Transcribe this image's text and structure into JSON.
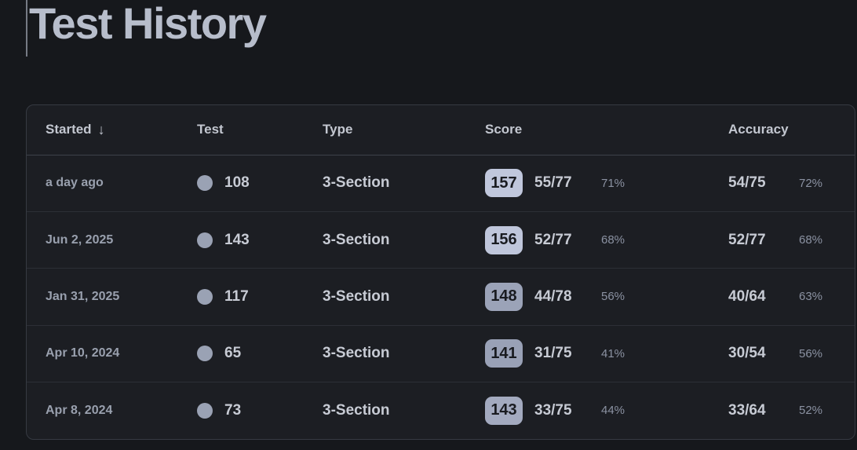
{
  "page": {
    "title": "Test History"
  },
  "colors": {
    "page_background": "#16181c",
    "card_background": "#1c1e23",
    "card_border": "#363a42",
    "dot": "#9aa2b4",
    "badge_high": "#bfc6db",
    "badge_mid": "#9da5ba"
  },
  "table": {
    "columns": {
      "started": "Started",
      "test": "Test",
      "type": "Type",
      "score": "Score",
      "accuracy": "Accuracy"
    },
    "sort_icon": "↓",
    "rows": [
      {
        "started": "a day ago",
        "test": "108",
        "type": "3-Section",
        "score_badge": "157",
        "badge_color": "#c0c7dc",
        "score_fraction": "55/77",
        "score_percent": "71%",
        "accuracy_fraction": "54/75",
        "accuracy_percent": "72%"
      },
      {
        "started": "Jun 2, 2025",
        "test": "143",
        "type": "3-Section",
        "score_badge": "156",
        "badge_color": "#bfc6db",
        "score_fraction": "52/77",
        "score_percent": "68%",
        "accuracy_fraction": "52/77",
        "accuracy_percent": "68%"
      },
      {
        "started": "Jan 31, 2025",
        "test": "117",
        "type": "3-Section",
        "score_badge": "148",
        "badge_color": "#9ba3b8",
        "score_fraction": "44/78",
        "score_percent": "56%",
        "accuracy_fraction": "40/64",
        "accuracy_percent": "63%"
      },
      {
        "started": "Apr 10, 2024",
        "test": "65",
        "type": "3-Section",
        "score_badge": "141",
        "badge_color": "#99a1b6",
        "score_fraction": "31/75",
        "score_percent": "41%",
        "accuracy_fraction": "30/54",
        "accuracy_percent": "56%"
      },
      {
        "started": "Apr 8, 2024",
        "test": "73",
        "type": "3-Section",
        "score_badge": "143",
        "badge_color": "#a3aabf",
        "score_fraction": "33/75",
        "score_percent": "44%",
        "accuracy_fraction": "33/64",
        "accuracy_percent": "52%"
      }
    ]
  }
}
